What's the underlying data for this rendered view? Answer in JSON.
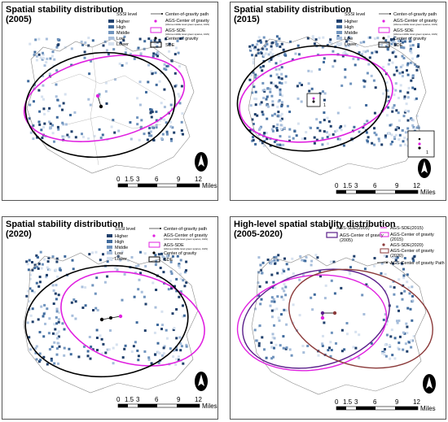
{
  "panels": [
    {
      "title_line1": "Spatial stability distribution",
      "title_line2": "(2005)",
      "legend": {
        "ssi_level_label": "SSSI level",
        "levels": [
          "Higher",
          "High",
          "Middle",
          "Low",
          "Lower"
        ],
        "path_label": "Center-of-gravity path",
        "ags_center_label": "AGS-Center of gravity",
        "ags_center_sub": "(Above-middle level green spaces, AGS)",
        "ags_sde_label": "AGS-SDE",
        "ags_sde_sub": "(Above-middle level green spaces, AGS)",
        "center_label": "Center of gravity",
        "sde_label": "SDE"
      }
    },
    {
      "title_line1": "Spatial stability distribution",
      "title_line2": "(2015)",
      "legend": {
        "ssi_level_label": "SSSI level",
        "levels": [
          "Higher",
          "High",
          "Middle",
          "Low",
          "Lower"
        ],
        "path_label": "Center-of-gravity path",
        "ags_center_label": "AGS-Center of gravity",
        "ags_center_sub": "(Above-middle level green spaces, AGS)",
        "ags_sde_label": "AGS-SDE",
        "ags_sde_sub": "(Above-middle level green spaces, AGS)",
        "center_label": "Center of gravity",
        "sde_label": "SDE"
      },
      "inset_label_1": "1",
      "inset_label_2": "1"
    },
    {
      "title_line1": "Spatial stability distribution",
      "title_line2": "(2020)",
      "legend": {
        "ssi_level_label": "SSSI level",
        "levels": [
          "Higher",
          "High",
          "Middle",
          "Low",
          "Lower"
        ],
        "path_label": "Center-of-gravity path",
        "ags_center_label": "AGS-Center of gravity",
        "ags_center_sub": "(Above-middle level green spaces, AGS)",
        "ags_sde_label": "AGS-SDE",
        "ags_sde_sub": "(Above-middle level green spaces, AGS)",
        "center_label": "Center of gravity",
        "sde_label": "SDE"
      }
    },
    {
      "title_line1": "High-level spatial stability distribution",
      "title_line2": "(2005-2020)",
      "legend": {
        "sde_2005": "AGS-SDE(2005)",
        "center_2005": "AGS-Center of gravity",
        "center_2005_year": "(2005)",
        "sde_2015": "AGS-SDE(2015)",
        "center_2015": "AGS-Center of gravity",
        "center_2015_year": "(2015)",
        "sde_2020": "AGS-SDE(2020)",
        "center_2020": "AGS-Center of gravity",
        "center_2020_year": "(2020)",
        "path_label": "AGS-Center of gravity Path"
      }
    }
  ],
  "scale_bar": {
    "ticks": [
      "0",
      "1.5",
      "3",
      "6",
      "9",
      "12"
    ],
    "unit": "Miles"
  },
  "colors": {
    "higher": "#1f3f6b",
    "high": "#3f6a9c",
    "middle": "#6f93bd",
    "low": "#a7bedb",
    "lower": "#d6e1ef",
    "ags_sde": "#e020e0",
    "sde": "#000000",
    "sde_2005": "#5a1f8a",
    "sde_2020": "#8b3a3a"
  },
  "icons": [
    "north-arrow-icon"
  ]
}
